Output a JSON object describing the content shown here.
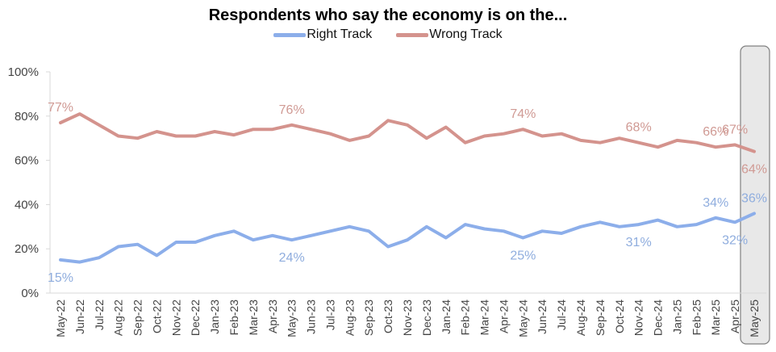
{
  "chart_data": {
    "type": "line",
    "title": "Respondents who say the economy is on the...",
    "xlabel": "",
    "ylabel": "",
    "ylim": [
      0,
      100
    ],
    "yticks": [
      "0%",
      "20%",
      "40%",
      "60%",
      "80%",
      "100%"
    ],
    "ytick_values": [
      0,
      20,
      40,
      60,
      80,
      100
    ],
    "grid": false,
    "legend_position": "top-center",
    "highlighted_category": "May-25",
    "categories": [
      "May-22",
      "Jun-22",
      "Jul-22",
      "Aug-22",
      "Sep-22",
      "Oct-22",
      "Nov-22",
      "Dec-22",
      "Jan-23",
      "Feb-23",
      "Mar-23",
      "Apr-23",
      "May-23",
      "Jun-23",
      "Jul-23",
      "Aug-23",
      "Sep-23",
      "Oct-23",
      "Nov-23",
      "Dec-23",
      "Jan-24",
      "Feb-24",
      "Mar-24",
      "Apr-24",
      "May-24",
      "Jun-24",
      "Jul-24",
      "Aug-24",
      "Sep-24",
      "Oct-24",
      "Nov-24",
      "Dec-24",
      "Jan-25",
      "Feb-25",
      "Mar-25",
      "Apr-25",
      "May-25"
    ],
    "series": [
      {
        "name": "Right Track",
        "color": "#8caeea",
        "label_color": "#8fadde",
        "values": [
          15,
          14,
          16,
          21,
          22,
          17,
          23,
          23,
          26,
          28,
          24,
          26,
          24,
          26,
          28,
          30,
          28,
          21,
          24,
          30,
          25,
          31,
          29,
          28,
          25,
          28,
          27,
          30,
          32,
          30,
          31,
          33,
          30,
          31,
          34,
          32,
          36
        ],
        "labels": [
          {
            "index": 0,
            "text": "15%",
            "position": "below"
          },
          {
            "index": 12,
            "text": "24%",
            "position": "below"
          },
          {
            "index": 24,
            "text": "25%",
            "position": "below"
          },
          {
            "index": 30,
            "text": "31%",
            "position": "below"
          },
          {
            "index": 34,
            "text": "34%",
            "position": "above"
          },
          {
            "index": 35,
            "text": "32%",
            "position": "below"
          },
          {
            "index": 36,
            "text": "36%",
            "position": "above"
          }
        ]
      },
      {
        "name": "Wrong Track",
        "color": "#d4938d",
        "label_color": "#d09a94",
        "values": [
          77,
          81,
          76,
          71,
          70,
          73,
          71,
          71,
          73,
          71.5,
          74,
          74,
          76,
          74,
          72,
          69,
          71,
          78,
          76,
          70,
          75,
          68,
          71,
          72,
          74,
          71,
          72,
          69,
          68,
          70,
          68,
          66,
          69,
          68,
          66,
          67,
          64
        ],
        "labels": [
          {
            "index": 0,
            "text": "77%",
            "position": "above"
          },
          {
            "index": 12,
            "text": "76%",
            "position": "above"
          },
          {
            "index": 24,
            "text": "74%",
            "position": "above"
          },
          {
            "index": 30,
            "text": "68%",
            "position": "above"
          },
          {
            "index": 34,
            "text": "66%",
            "position": "above"
          },
          {
            "index": 35,
            "text": "67%",
            "position": "above"
          },
          {
            "index": 36,
            "text": "64%",
            "position": "below"
          }
        ]
      }
    ]
  }
}
